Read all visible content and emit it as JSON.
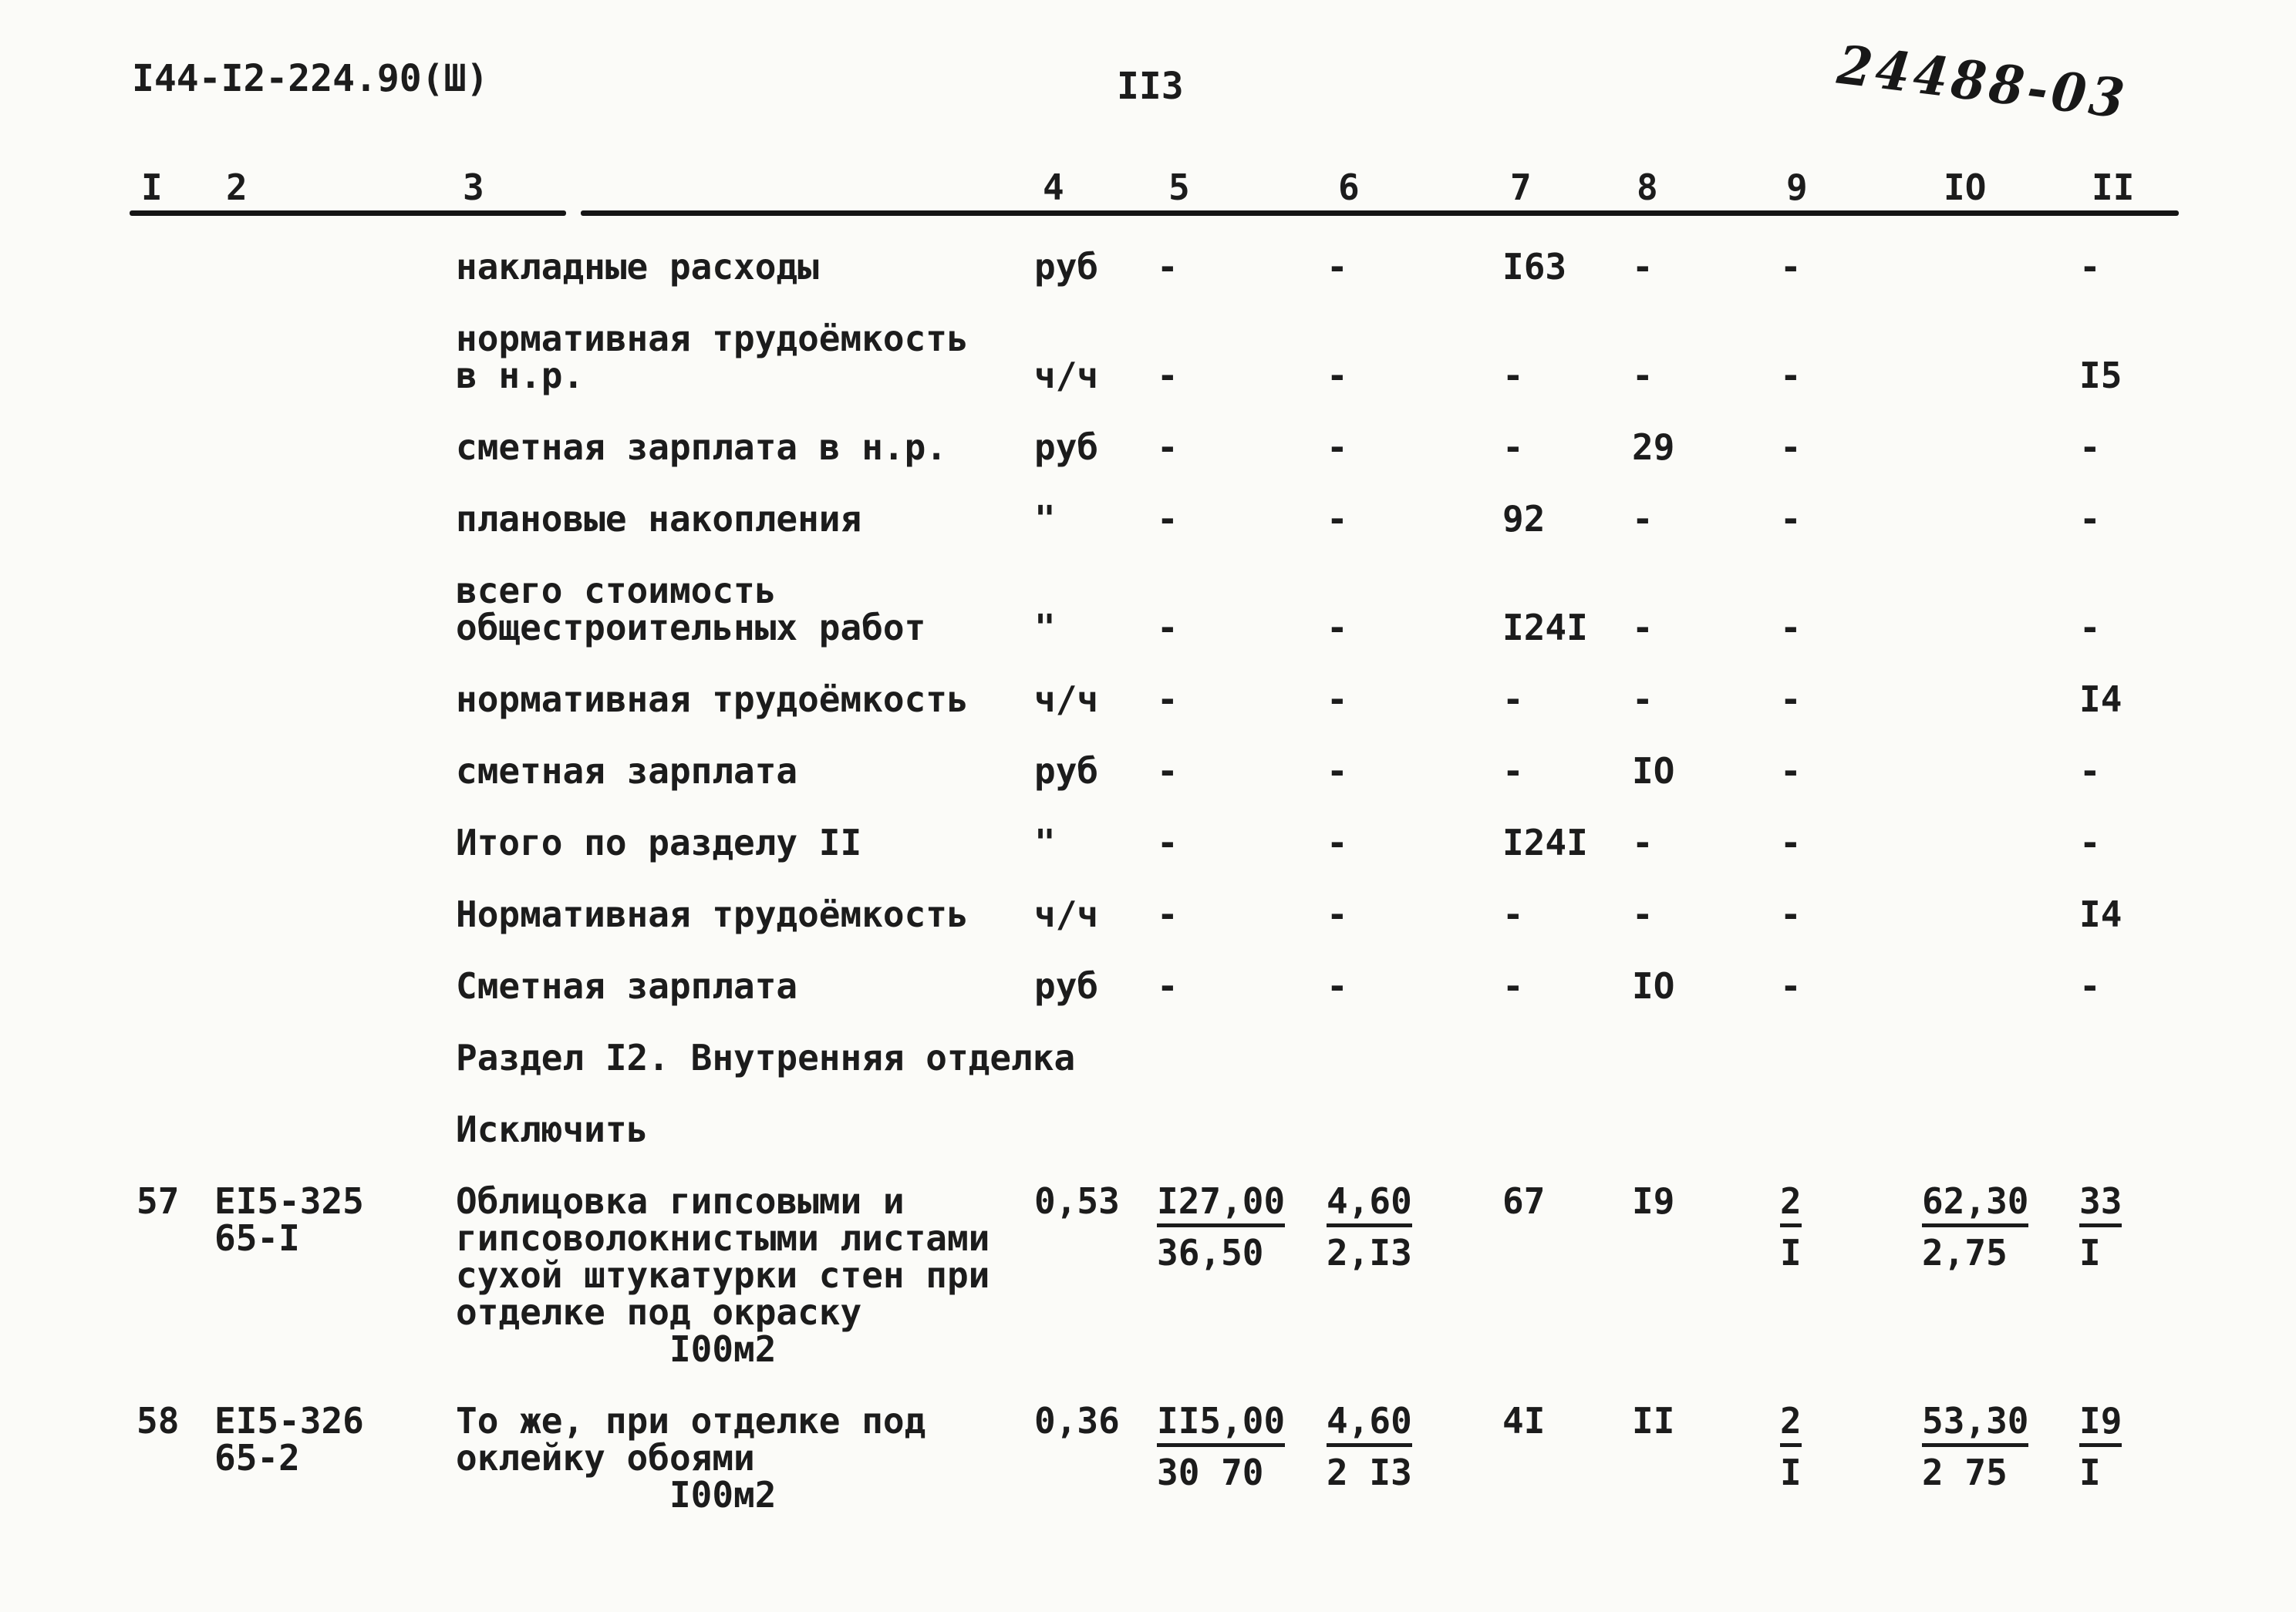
{
  "page": {
    "doc_code": "I44-I2-224.90(Ш)",
    "page_number": "II3",
    "handwritten_stamp": "24488-03"
  },
  "table": {
    "column_headers": [
      "I",
      "2",
      "3",
      "4",
      "5",
      "6",
      "7",
      "8",
      "9",
      "IO",
      "II"
    ],
    "rows": [
      {
        "type": "data",
        "desc": [
          "накладные расходы"
        ],
        "unit": "руб",
        "align_line": 1,
        "cells": {
          "c5": "-",
          "c6": "-",
          "c7": "I63",
          "c8": "-",
          "c9": "-",
          "c11": "-"
        }
      },
      {
        "type": "data",
        "desc": [
          "нормативная трудоёмкость",
          "в н.р."
        ],
        "unit": "ч/ч",
        "align_line": 2,
        "cells": {
          "c5": "-",
          "c6": "-",
          "c7": "-",
          "c8": "-",
          "c9": "-",
          "c11": "I5"
        }
      },
      {
        "type": "data",
        "desc": [
          "сметная зарплата в н.р."
        ],
        "unit": "руб",
        "align_line": 1,
        "cells": {
          "c5": "-",
          "c6": "-",
          "c7": "-",
          "c8": "29",
          "c9": "-",
          "c11": "-"
        }
      },
      {
        "type": "data",
        "desc": [
          "плановые накопления"
        ],
        "unit": "\"",
        "align_line": 1,
        "cells": {
          "c5": "-",
          "c6": "-",
          "c7": "92",
          "c8": "-",
          "c9": "-",
          "c11": "-"
        }
      },
      {
        "type": "data",
        "desc": [
          "всего стоимость",
          "общестроительных работ"
        ],
        "unit": "\"",
        "align_line": 2,
        "cells": {
          "c5": "-",
          "c6": "-",
          "c7": "I24I",
          "c8": "-",
          "c9": "-",
          "c11": "-"
        }
      },
      {
        "type": "data",
        "desc": [
          "нормативная трудоёмкость"
        ],
        "unit": "ч/ч",
        "align_line": 1,
        "cells": {
          "c5": "-",
          "c6": "-",
          "c7": "-",
          "c8": "-",
          "c9": "-",
          "c11": "I4"
        }
      },
      {
        "type": "data",
        "desc": [
          "сметная зарплата"
        ],
        "unit": "руб",
        "align_line": 1,
        "cells": {
          "c5": "-",
          "c6": "-",
          "c7": "-",
          "c8": "IO",
          "c9": "-",
          "c11": "-"
        }
      },
      {
        "type": "data",
        "desc": [
          "Итого по разделу II"
        ],
        "unit": "\"",
        "align_line": 1,
        "cells": {
          "c5": "-",
          "c6": "-",
          "c7": "I24I",
          "c8": "-",
          "c9": "-",
          "c11": "-"
        }
      },
      {
        "type": "data",
        "desc": [
          "Нормативная трудоёмкость"
        ],
        "unit": "ч/ч",
        "align_line": 1,
        "cells": {
          "c5": "-",
          "c6": "-",
          "c7": "-",
          "c8": "-",
          "c9": "-",
          "c11": "I4"
        }
      },
      {
        "type": "data",
        "desc": [
          "Сметная зарплата"
        ],
        "unit": "руб",
        "align_line": 1,
        "cells": {
          "c5": "-",
          "c6": "-",
          "c7": "-",
          "c8": "IO",
          "c9": "-",
          "c11": "-"
        }
      },
      {
        "type": "section",
        "desc": [
          "Раздел I2. Внутренняя отделка"
        ]
      },
      {
        "type": "section",
        "desc": [
          "Исключить"
        ]
      },
      {
        "type": "item",
        "num": "57",
        "code": [
          "ЕI5-325",
          "65-I"
        ],
        "desc": [
          "Облицовка гипсовыми и",
          "гипсоволокнистыми листами",
          "сухой штукатурки стен при",
          "отделке под окраску"
        ],
        "unit_note": "I00м2",
        "qty": "0,53",
        "cells": {
          "c5": {
            "n": "I27,00",
            "d": "36,50"
          },
          "c6": {
            "n": "4,60",
            "d": "2,I3"
          },
          "c7": "67",
          "c8": "I9",
          "c9": {
            "n": "2",
            "d": "I"
          },
          "c10": {
            "n": "62,30",
            "d": "2,75"
          },
          "c11": {
            "n": "33",
            "d": "I"
          }
        }
      },
      {
        "type": "item",
        "num": "58",
        "code": [
          "ЕI5-326",
          "65-2"
        ],
        "desc": [
          "То же, при отделке под",
          "оклейку обоями"
        ],
        "unit_note": "I00м2",
        "qty": "0,36",
        "cells": {
          "c5": {
            "n": "II5,00",
            "d": "30 70"
          },
          "c6": {
            "n": "4,60",
            "d": "2 I3"
          },
          "c7": "4I",
          "c8": "II",
          "c9": {
            "n": "2",
            "d": "I"
          },
          "c10": {
            "n": "53,30",
            "d": "2 75"
          },
          "c11": {
            "n": "I9",
            "d": "I"
          }
        }
      }
    ]
  }
}
